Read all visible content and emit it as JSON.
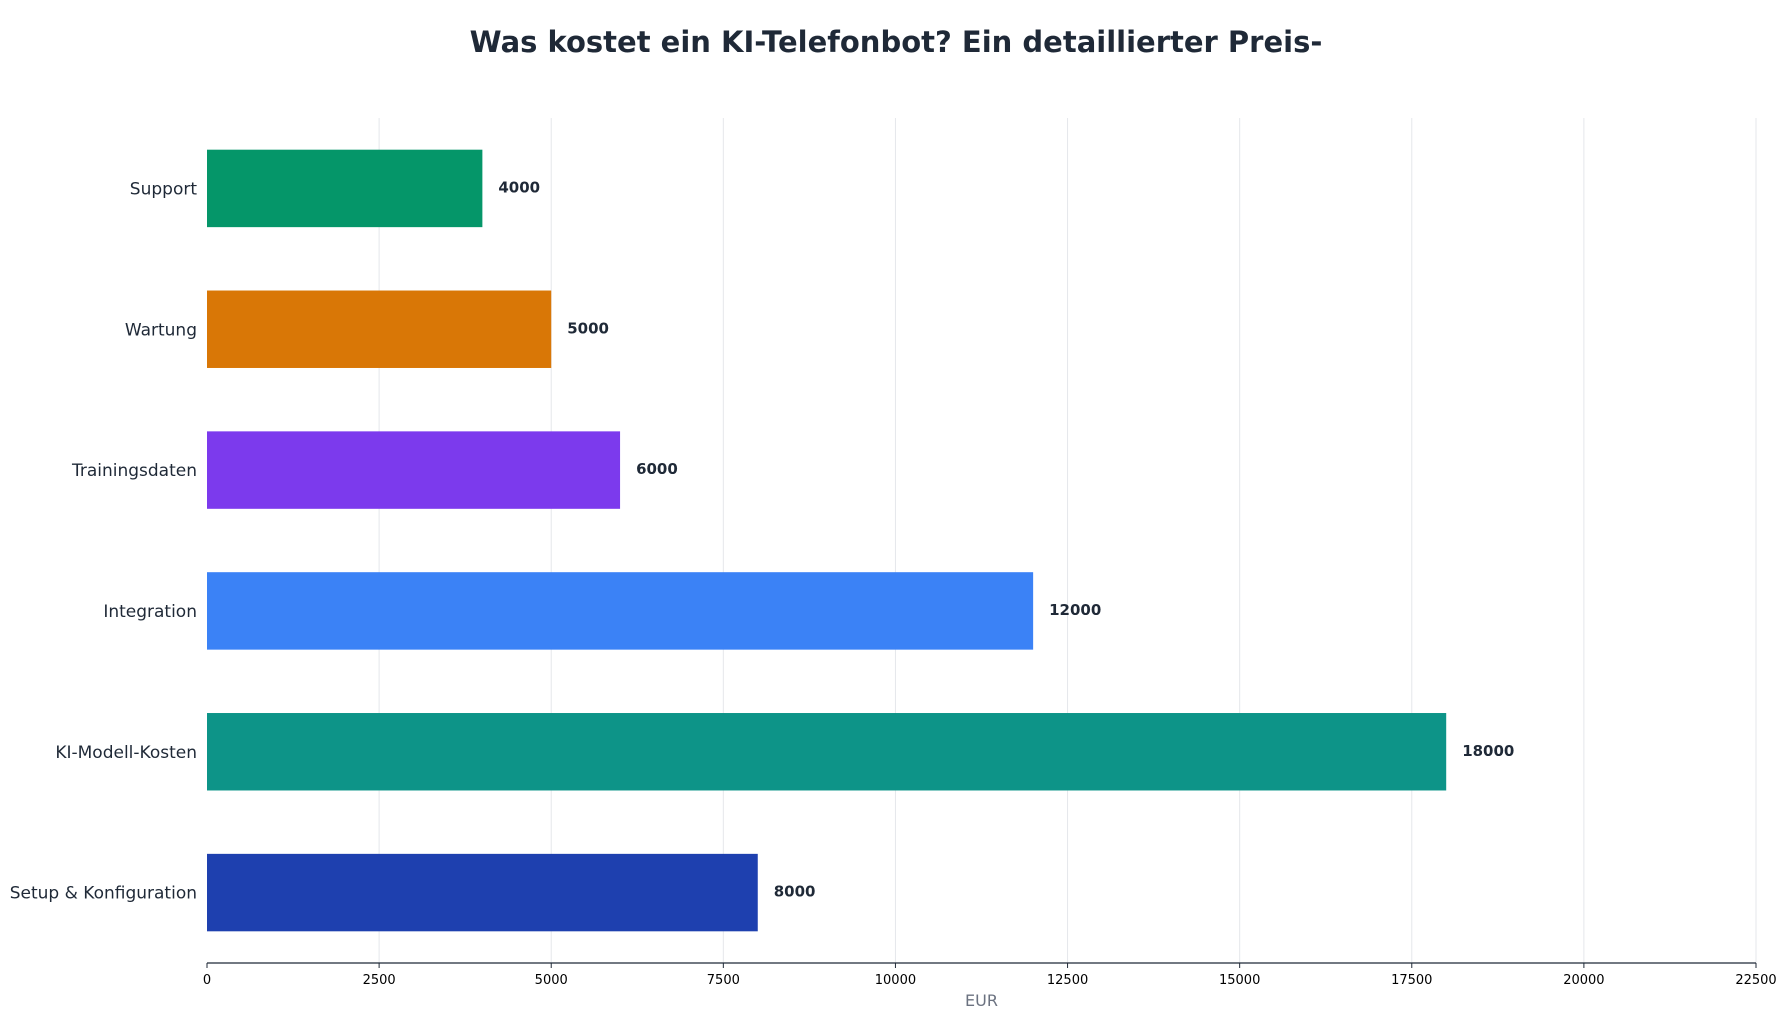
{
  "chart_data": {
    "type": "bar",
    "orientation": "horizontal",
    "title": "Was kostet ein KI-Telefonbot? Ein detaillierter Preis-",
    "xlabel": "EUR",
    "ylabel": "",
    "categories": [
      "Setup & Konfiguration",
      "KI-Modell-Kosten",
      "Integration",
      "Trainingsdaten",
      "Wartung",
      "Support"
    ],
    "values": [
      8000,
      18000,
      12000,
      6000,
      5000,
      4000
    ],
    "colors": [
      "#1e40af",
      "#0d9488",
      "#3b82f6",
      "#7c3aed",
      "#d97706",
      "#059669"
    ],
    "xlim": [
      0,
      22500
    ],
    "xticks": [
      0,
      2500,
      5000,
      7500,
      10000,
      12500,
      15000,
      17500,
      20000,
      22500
    ],
    "grid": "vertical",
    "legend": "none"
  }
}
